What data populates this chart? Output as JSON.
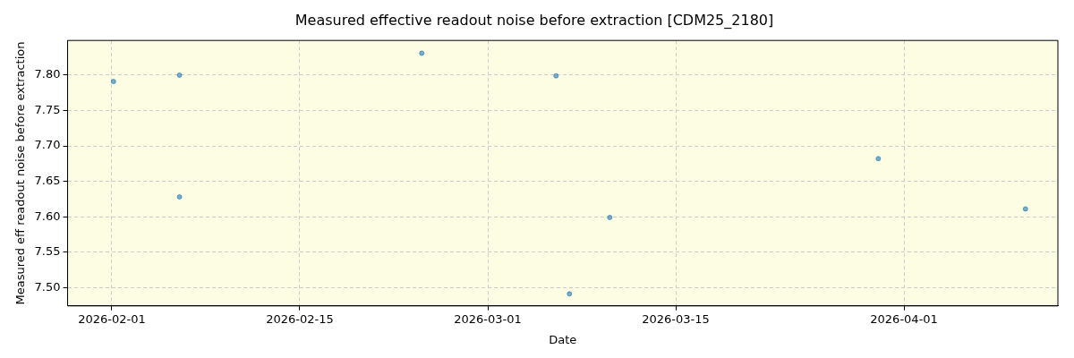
{
  "chart_data": {
    "type": "scatter",
    "title": "Measured effective readout noise before extraction [CDM25_2180]",
    "xlabel": "Date",
    "ylabel": "Measured eff readout noise before extraction",
    "x": [
      "2026-02-01T03:00",
      "2026-02-06T01:00",
      "2026-02-06T01:00",
      "2026-02-24T02:00",
      "2026-03-06T02:00",
      "2026-03-07T02:00",
      "2026-03-10T02:00",
      "2026-03-30T02:00",
      "2026-04-10T01:00"
    ],
    "series": [
      {
        "color": "#1f77b4",
        "values": [
          7.791,
          7.8,
          7.628,
          7.831,
          7.799,
          7.491,
          7.599,
          7.682,
          7.611
        ]
      }
    ],
    "xlim": [
      "2026-01-28T17:00",
      "2026-04-12T11:00"
    ],
    "xticks": [
      "2026-02-01",
      "2026-02-15",
      "2026-03-01",
      "2026-03-15",
      "2026-04-01"
    ],
    "ylim": [
      7.474,
      7.849
    ],
    "yticks": [
      {
        "value": 7.5,
        "label": "7.50"
      },
      {
        "value": 7.55,
        "label": "7.55"
      },
      {
        "value": 7.6,
        "label": "7.60"
      },
      {
        "value": 7.65,
        "label": "7.65"
      },
      {
        "value": 7.7,
        "label": "7.70"
      },
      {
        "value": 7.75,
        "label": "7.75"
      },
      {
        "value": 7.8,
        "label": "7.80"
      }
    ],
    "grid": true,
    "marker": "circle",
    "legend": false
  }
}
